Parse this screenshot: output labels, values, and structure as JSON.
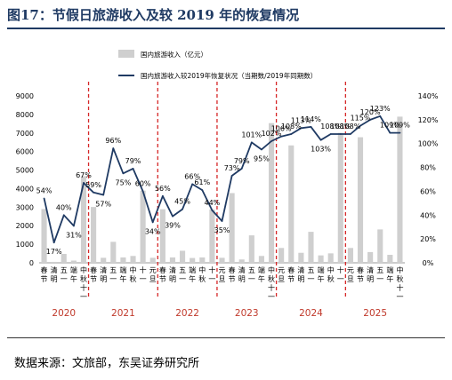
{
  "figure": {
    "title": "图17：节假日旅游收入及较 2019 年的恢复情况",
    "source": "数据来源：文旅部，东吴证券研究所"
  },
  "colors": {
    "bar": "#cfcfcf",
    "line": "#1f3a63",
    "divider": "#d62728",
    "year": "#c0392b",
    "title": "#1f3a63"
  },
  "chart_data": {
    "type": "bar+line",
    "categories": [
      "春节",
      "清明",
      "五一",
      "端午",
      "中秋十一",
      "春节",
      "清明",
      "五一",
      "端午",
      "中秋",
      "十一",
      "元旦",
      "春节",
      "清明",
      "五一",
      "端午",
      "中秋",
      "十一",
      "元旦",
      "春节",
      "清明",
      "五一",
      "端午",
      "中秋十一",
      "元旦",
      "春节",
      "清明",
      "五一",
      "端午",
      "中秋",
      "十一",
      "元旦",
      "春节",
      "清明",
      "五一",
      "端午",
      "中秋十一"
    ],
    "x_tick_labels": [
      [
        "春",
        "节"
      ],
      [
        "清",
        "明"
      ],
      [
        "五",
        "一"
      ],
      [
        "端",
        "午"
      ],
      [
        "中",
        "秋",
        "十",
        "一"
      ],
      [
        "春",
        "节"
      ],
      [
        "清",
        "明"
      ],
      [
        "五",
        "一"
      ],
      [
        "端",
        "午"
      ],
      [
        "中",
        "秋"
      ],
      [
        "十",
        "一"
      ],
      [
        "元",
        "旦"
      ],
      [
        "春",
        "节"
      ],
      [
        "清",
        "明"
      ],
      [
        "五",
        "一"
      ],
      [
        "端",
        "午"
      ],
      [
        "中",
        "秋"
      ],
      [
        "十",
        "一"
      ],
      [
        "元",
        "旦"
      ],
      [
        "春",
        "节"
      ],
      [
        "清",
        "明"
      ],
      [
        "五",
        "一"
      ],
      [
        "端",
        "午"
      ],
      [
        "中",
        "秋",
        "十",
        "一"
      ],
      [
        "元",
        "旦"
      ],
      [
        "春",
        "节"
      ],
      [
        "清",
        "明"
      ],
      [
        "五",
        "一"
      ],
      [
        "端",
        "午"
      ],
      [
        "中",
        "秋"
      ],
      [
        "十",
        "一"
      ],
      [
        "元",
        "旦"
      ],
      [
        "春",
        "节"
      ],
      [
        "清",
        "明"
      ],
      [
        "五",
        "一"
      ],
      [
        "端",
        "午"
      ],
      [
        "中",
        "秋",
        "十",
        "一"
      ]
    ],
    "years": [
      {
        "label": "2020",
        "start": 0,
        "end": 4
      },
      {
        "label": "2021",
        "start": 5,
        "end": 11
      },
      {
        "label": "2022",
        "start": 12,
        "end": 17
      },
      {
        "label": "2023",
        "start": 18,
        "end": 23
      },
      {
        "label": "2024",
        "start": 24,
        "end": 30
      },
      {
        "label": "2025",
        "start": 31,
        "end": 36
      }
    ],
    "year_boundaries_after": [
      4,
      11,
      17,
      23,
      30
    ],
    "series": [
      {
        "name": "国内旅游收入（亿元）",
        "type": "bar",
        "axis": "left",
        "values": [
          2900,
          50,
          480,
          120,
          4670,
          3010,
          270,
          1130,
          290,
          370,
          3890,
          270,
          2890,
          290,
          650,
          260,
          290,
          2870,
          270,
          3760,
          180,
          1480,
          370,
          7530,
          800,
          6330,
          540,
          1670,
          400,
          510,
          7010,
          800,
          6770,
          580,
          1800,
          430,
          7880
        ]
      },
      {
        "name": "国内旅游收入较2019年恢复状况（当期数/2019年同期数）",
        "type": "line",
        "axis": "right",
        "values": [
          54,
          17,
          40,
          31,
          67,
          59,
          57,
          96,
          75,
          79,
          60,
          34,
          56,
          39,
          45,
          66,
          61,
          44,
          35,
          73,
          79,
          101,
          95,
          102,
          106,
          108,
          113,
          114,
          103,
          108,
          108,
          108,
          115,
          120,
          123,
          109,
          109
        ],
        "labels": [
          "54%",
          "17%",
          "40%",
          "31%",
          "67%",
          "59%",
          "57%",
          "96%",
          "75%",
          "79%",
          "60%",
          "34%",
          "56%",
          "39%",
          "45%",
          "66%",
          "61%",
          "44%",
          "35%",
          "73%",
          "79%",
          "101%",
          "95%",
          "102%",
          "106%",
          "108%",
          "113%",
          "114%",
          "103%",
          "108%",
          "108%",
          "108%",
          "115%",
          "120%",
          "123%",
          "109%",
          "109%"
        ]
      }
    ],
    "left_axis": {
      "min": 0,
      "max": 9000,
      "step": 1000,
      "ticks": [
        "0",
        "1000",
        "2000",
        "3000",
        "4000",
        "5000",
        "6000",
        "7000",
        "8000",
        "9000"
      ]
    },
    "right_axis": {
      "min": 0,
      "max": 140,
      "step": 20,
      "ticks": [
        "0%",
        "20%",
        "40%",
        "60%",
        "80%",
        "100%",
        "120%",
        "140%"
      ]
    },
    "legend": {
      "placement": "top-center",
      "items": [
        {
          "label": "国内旅游收入（亿元）",
          "kind": "bar"
        },
        {
          "label": "国内旅游收入较2019年恢复状况（当期数/2019年同期数）",
          "kind": "line"
        }
      ]
    },
    "grid": false
  }
}
